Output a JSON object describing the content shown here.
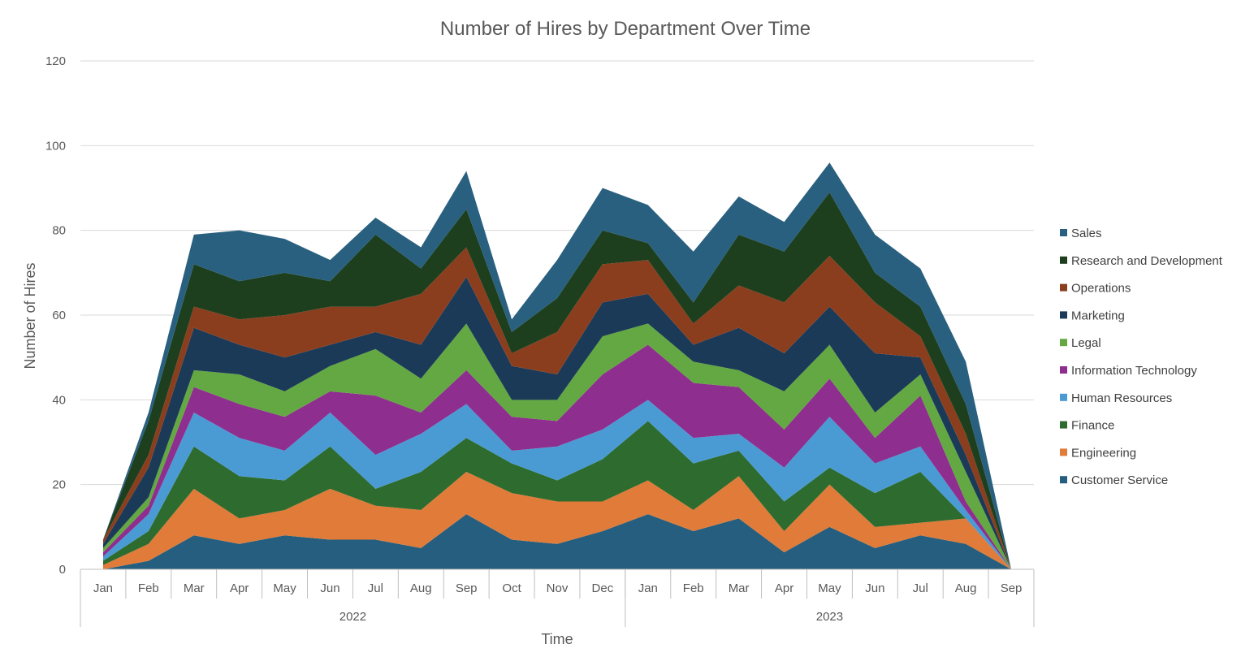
{
  "chart_data": {
    "type": "area",
    "stacked": true,
    "title": "Number of Hires by Department Over Time",
    "xlabel": "Time",
    "ylabel": "Number of Hires",
    "ylim": [
      0,
      120
    ],
    "yticks": [
      0,
      20,
      40,
      60,
      80,
      100,
      120
    ],
    "grid": true,
    "legend_position": "right",
    "categories": [
      "Jan",
      "Feb",
      "Mar",
      "Apr",
      "May",
      "Jun",
      "Jul",
      "Aug",
      "Sep",
      "Oct",
      "Nov",
      "Dec",
      "Jan",
      "Feb",
      "Mar",
      "Apr",
      "May",
      "Jun",
      "Jul",
      "Aug",
      "Sep"
    ],
    "year_groups": [
      {
        "label": "2022",
        "count": 12
      },
      {
        "label": "2023",
        "count": 9
      }
    ],
    "series": [
      {
        "name": "Customer Service",
        "color": "#255E7E",
        "values": [
          0,
          2,
          8,
          6,
          8,
          7,
          7,
          5,
          13,
          7,
          6,
          9,
          13,
          9,
          12,
          4,
          10,
          5,
          8,
          6,
          0
        ]
      },
      {
        "name": "Engineering",
        "color": "#E07B39",
        "values": [
          1,
          4,
          11,
          6,
          6,
          12,
          8,
          9,
          10,
          11,
          10,
          7,
          8,
          5,
          10,
          5,
          10,
          5,
          3,
          6,
          0
        ]
      },
      {
        "name": "Finance",
        "color": "#2E6B2E",
        "values": [
          1,
          3,
          10,
          10,
          7,
          10,
          4,
          9,
          8,
          7,
          5,
          10,
          14,
          11,
          6,
          7,
          4,
          8,
          12,
          0,
          0
        ]
      },
      {
        "name": "Human Resources",
        "color": "#4A9BD4",
        "values": [
          1,
          4,
          8,
          9,
          7,
          8,
          8,
          9,
          8,
          3,
          8,
          7,
          5,
          6,
          4,
          8,
          12,
          7,
          6,
          2,
          0
        ]
      },
      {
        "name": "Information Technology",
        "color": "#8E2E8E",
        "values": [
          1,
          2,
          6,
          8,
          8,
          5,
          14,
          5,
          8,
          8,
          6,
          13,
          13,
          13,
          11,
          9,
          9,
          6,
          12,
          2,
          0
        ]
      },
      {
        "name": "Legal",
        "color": "#63A842",
        "values": [
          1,
          2,
          4,
          7,
          6,
          6,
          11,
          8,
          11,
          4,
          5,
          9,
          5,
          5,
          4,
          9,
          8,
          6,
          5,
          7,
          0
        ]
      },
      {
        "name": "Marketing",
        "color": "#1B3A57",
        "values": [
          1,
          7,
          10,
          7,
          8,
          5,
          4,
          8,
          11,
          8,
          6,
          8,
          7,
          4,
          10,
          9,
          9,
          14,
          4,
          4,
          0
        ]
      },
      {
        "name": "Operations",
        "color": "#8B3E1E",
        "values": [
          1,
          3,
          5,
          6,
          10,
          9,
          6,
          12,
          7,
          3,
          10,
          9,
          8,
          5,
          10,
          12,
          12,
          12,
          5,
          5,
          0
        ]
      },
      {
        "name": "Research and Development",
        "color": "#1E3F1E",
        "values": [
          0,
          8,
          10,
          9,
          10,
          6,
          17,
          6,
          9,
          5,
          8,
          8,
          4,
          5,
          12,
          12,
          15,
          7,
          7,
          7,
          0
        ]
      },
      {
        "name": "Sales",
        "color": "#2A607F",
        "values": [
          0,
          2,
          7,
          12,
          8,
          5,
          4,
          5,
          9,
          3,
          9,
          10,
          9,
          12,
          9,
          7,
          7,
          9,
          9,
          10,
          0
        ]
      }
    ]
  }
}
